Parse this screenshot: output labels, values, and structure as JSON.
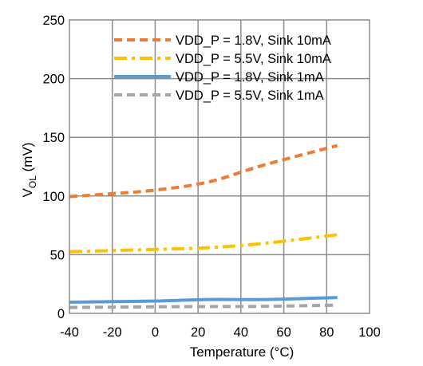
{
  "chart_data": {
    "type": "line",
    "xlabel": "Temperature (°C)",
    "ylabel_main": "V",
    "ylabel_sub": "OL",
    "ylabel_unit": " (mV)",
    "xlim": [
      -40,
      100
    ],
    "ylim": [
      0,
      250
    ],
    "xticks": [
      -40,
      -20,
      0,
      20,
      40,
      60,
      80,
      100
    ],
    "yticks": [
      0,
      50,
      100,
      150,
      200,
      250
    ],
    "grid": true,
    "legend_position": "top-right",
    "series": [
      {
        "name": "VDD_P = 1.8V, Sink 10mA",
        "color": "#ED7D31",
        "dash": "dashed",
        "x": [
          -40,
          -20,
          0,
          25,
          50,
          85
        ],
        "y": [
          99.5,
          102,
          105,
          112,
          126,
          143
        ]
      },
      {
        "name": "VDD_P = 5.5V, Sink 10mA",
        "color": "#FFC000",
        "dash": "dash-dot",
        "x": [
          -40,
          -20,
          0,
          25,
          50,
          85
        ],
        "y": [
          52.5,
          53.5,
          54.5,
          56,
          59.5,
          67
        ]
      },
      {
        "name": "VDD_P = 1.8V, Sink 1mA",
        "color": "#5B9BD5",
        "dash": "solid",
        "x": [
          -40,
          -20,
          0,
          25,
          50,
          85
        ],
        "y": [
          9.5,
          10,
          10.5,
          11.8,
          11.8,
          13.5
        ]
      },
      {
        "name": "VDD_P = 5.5V, Sink 1mA",
        "color": "#A5A5A5",
        "dash": "dashed",
        "x": [
          -40,
          -20,
          0,
          25,
          50,
          85
        ],
        "y": [
          5,
          5.3,
          5.6,
          5.8,
          6,
          7
        ]
      }
    ]
  }
}
